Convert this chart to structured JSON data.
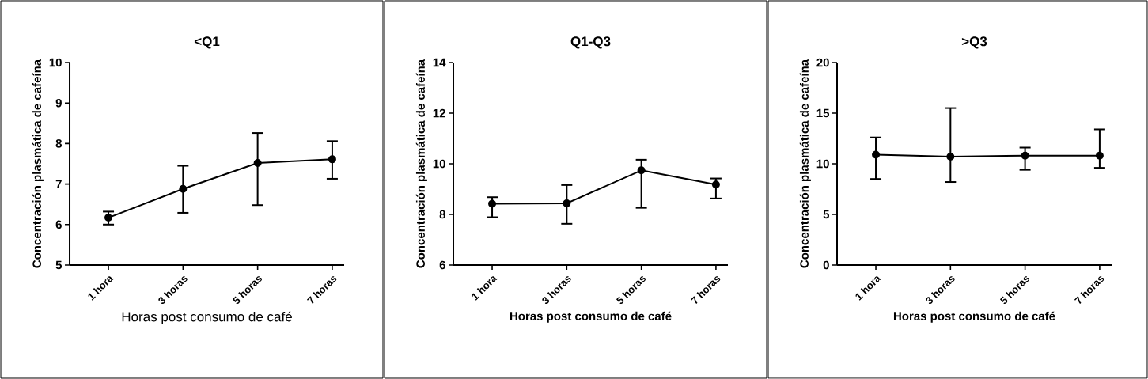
{
  "chart_data": [
    {
      "type": "line",
      "title": "<Q1",
      "xlabel": "Horas post consumo de café",
      "ylabel": "Concentración plasmática de cafeína",
      "categories": [
        "1 hora",
        "3 horas",
        "5 horas",
        "7 horas"
      ],
      "color": "#000000",
      "marker": "circle",
      "values": [
        6.17,
        6.88,
        7.52,
        7.61
      ],
      "errors": [
        [
          6.0,
          6.32
        ],
        [
          6.29,
          7.45
        ],
        [
          6.48,
          8.26
        ],
        [
          7.13,
          8.06
        ]
      ],
      "ylim": [
        5,
        10
      ],
      "yticks": [
        5,
        6,
        7,
        8,
        9,
        10
      ]
    },
    {
      "type": "line",
      "title": "Q1-Q3",
      "xlabel": "Horas post consumo de café",
      "ylabel": "Concentración plasmática de cafeína",
      "categories": [
        "1 hora",
        "3 horas",
        "5 horas",
        "7 horas"
      ],
      "color": "#000000",
      "marker": "circle",
      "values": [
        8.42,
        8.44,
        9.74,
        9.18
      ],
      "errors": [
        [
          7.89,
          8.68
        ],
        [
          7.63,
          9.16
        ],
        [
          8.26,
          10.16
        ],
        [
          8.63,
          9.42
        ]
      ],
      "ylim": [
        6,
        14
      ],
      "yticks": [
        6,
        8,
        10,
        12,
        14
      ]
    },
    {
      "type": "line",
      "title": ">Q3",
      "xlabel": "Horas post consumo de café",
      "ylabel": "Concentración plasmática de cafeína",
      "categories": [
        "1 hora",
        "3 horas",
        "5 horas",
        "7 horas"
      ],
      "color": "#000000",
      "marker": "circle",
      "values": [
        10.9,
        10.7,
        10.8,
        10.8
      ],
      "errors": [
        [
          8.5,
          12.6
        ],
        [
          8.2,
          15.5
        ],
        [
          9.4,
          11.6
        ],
        [
          9.6,
          13.4
        ]
      ],
      "ylim": [
        0,
        20
      ],
      "yticks": [
        0,
        5,
        10,
        15,
        20
      ]
    }
  ]
}
